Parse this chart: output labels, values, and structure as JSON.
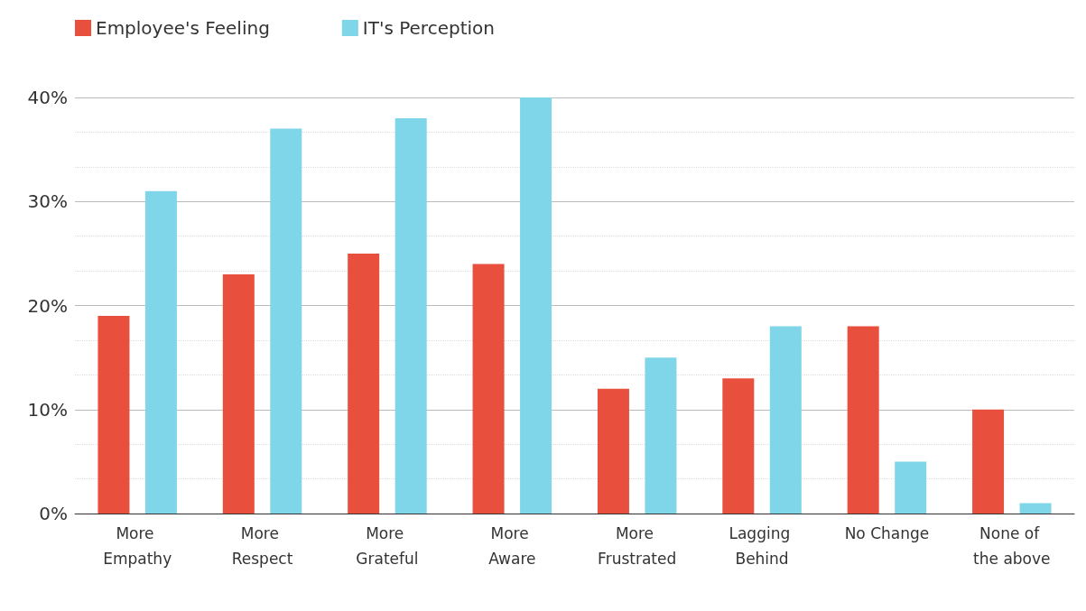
{
  "chart_data": {
    "type": "bar",
    "categories": [
      "More Empathy",
      "More Respect",
      "More Grateful",
      "More Aware",
      "More Frustrated",
      "Lagging Behind",
      "No Change",
      "None of the above"
    ],
    "series": [
      {
        "name": "Employee's Feeling",
        "color": "#e84f3d",
        "values": [
          19,
          23,
          25,
          24,
          12,
          13,
          18,
          10
        ]
      },
      {
        "name": "IT's Perception",
        "color": "#7fd6e8",
        "values": [
          31,
          37,
          38,
          40,
          15,
          18,
          5,
          1
        ]
      }
    ],
    "ylim": [
      0,
      40
    ],
    "yticks": [
      {
        "value": 0,
        "label": "0%"
      },
      {
        "value": 10,
        "label": "10%"
      },
      {
        "value": 20,
        "label": "20%"
      },
      {
        "value": 30,
        "label": "30%"
      },
      {
        "value": 40,
        "label": "40%"
      }
    ],
    "grid": "y",
    "legend": "top left"
  }
}
